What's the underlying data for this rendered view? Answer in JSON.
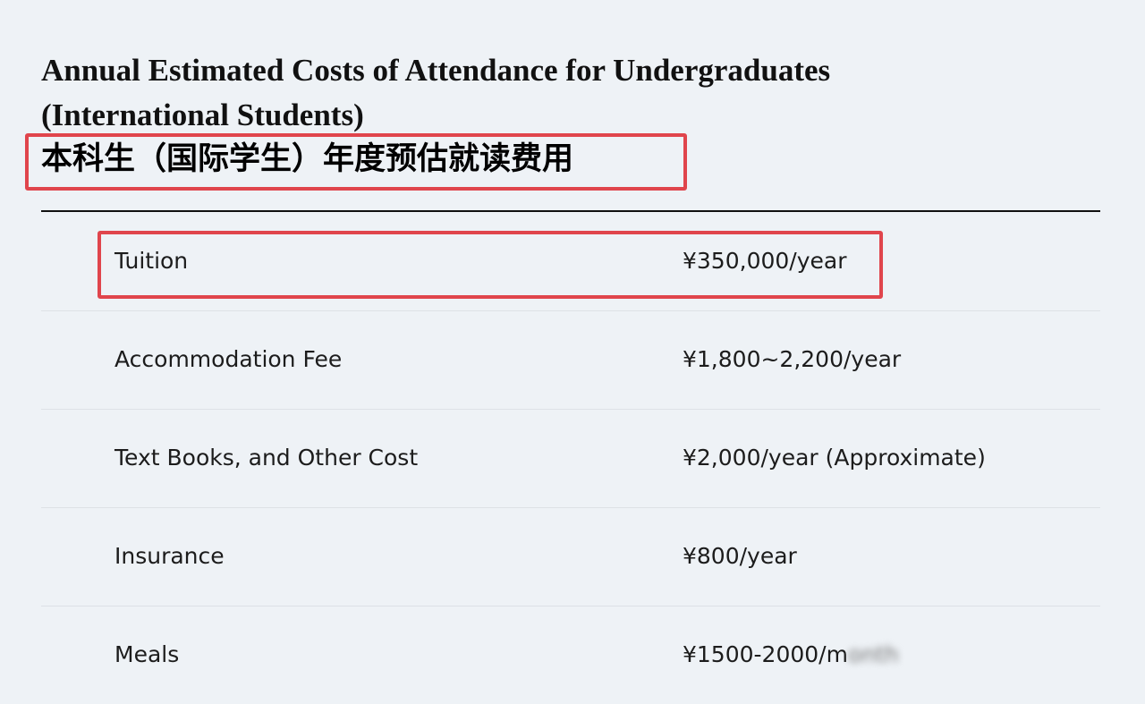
{
  "title": "Annual Estimated Costs of Attendance for Undergraduates (International Students)",
  "title_line1": "Annual Estimated Costs of Attendance for Undergraduates",
  "title_line2": "(International Students)",
  "subtitle_cn": "本科生（国际学生）年度预估就读费用",
  "highlight_color": "#e0454c",
  "rows": [
    {
      "label": "Tuition",
      "value": "¥350,000/year",
      "highlighted": true
    },
    {
      "label": "Accommodation Fee",
      "value": "¥1,800~2,200/year"
    },
    {
      "label": "Text Books, and Other Cost",
      "value": "¥2,000/year (Approximate)"
    },
    {
      "label": "Insurance",
      "value": "¥800/year"
    },
    {
      "label": "Meals",
      "value": "¥1500-2000/m",
      "value_blurred": "onth"
    }
  ]
}
